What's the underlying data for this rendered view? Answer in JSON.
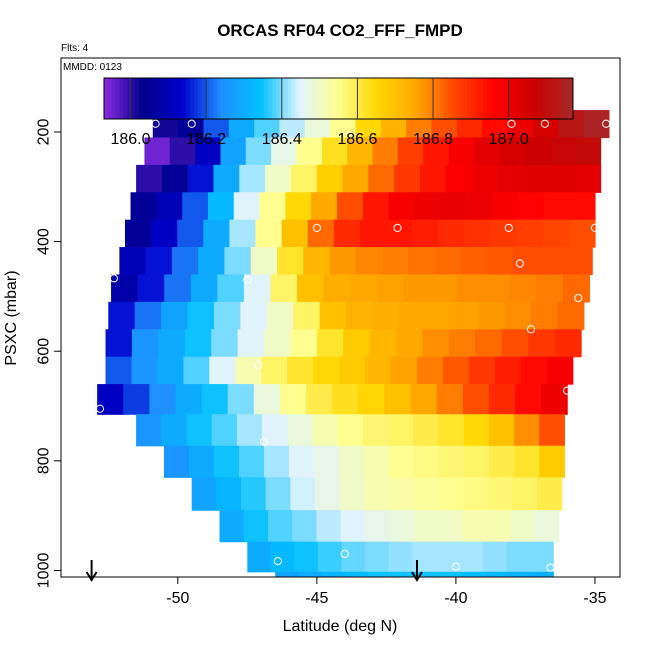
{
  "chart_data": {
    "type": "heatmap",
    "title": "ORCAS RF04 CO2_FFF_FMPD",
    "flights_label": "Flts: 4",
    "date_label": "MMDD: 0123",
    "xlabel": "Latitude (deg N)",
    "ylabel": "PSXC (mbar)",
    "xlim": [
      -54.2,
      -34.1
    ],
    "ylim": [
      1012,
      65
    ],
    "x_ticks": [
      -50,
      -45,
      -40,
      -35
    ],
    "x_tick_labels": [
      "-50",
      "-45",
      "-40",
      "-35"
    ],
    "y_ticks": [
      200,
      400,
      600,
      800,
      1000
    ],
    "y_tick_labels": [
      "200",
      "400",
      "600",
      "800",
      "1000"
    ],
    "colorbar": {
      "range": [
        185.93,
        187.17
      ],
      "ticks": [
        186.0,
        186.2,
        186.4,
        186.6,
        186.8,
        187.0
      ],
      "tick_labels": [
        "186.0",
        "186.2",
        "186.4",
        "186.6",
        "186.8",
        "187.0"
      ],
      "palette": [
        "#8a2be2",
        "#00008b",
        "#0000cd",
        "#1e90ff",
        "#00bfff",
        "#e0f4ff",
        "#ffff90",
        "#ffd700",
        "#ffa500",
        "#ff4500",
        "#ff0000",
        "#cd0000",
        "#a52a2a"
      ]
    },
    "rows": [
      {
        "p": 185,
        "x0": -50.9,
        "x1": -34.5,
        "v": [
          186.02,
          186.05,
          186.2,
          186.3,
          186.38,
          186.43,
          186.48,
          186.55,
          186.65,
          186.73,
          186.8,
          186.85,
          186.9,
          186.95,
          187.0,
          187.05,
          187.12,
          187.15
        ]
      },
      {
        "p": 235,
        "x0": -51.2,
        "x1": -34.8,
        "v": [
          185.95,
          186.0,
          186.12,
          186.28,
          186.4,
          186.47,
          186.55,
          186.63,
          186.72,
          186.8,
          186.87,
          186.93,
          186.98,
          187.02,
          187.05,
          187.07,
          187.08,
          187.09
        ]
      },
      {
        "p": 285,
        "x0": -51.5,
        "x1": -34.8,
        "v": [
          186.0,
          186.05,
          186.15,
          186.3,
          186.42,
          186.5,
          186.58,
          186.67,
          186.75,
          186.82,
          186.88,
          186.93,
          186.97,
          187.0,
          187.02,
          187.03,
          187.03,
          187.02
        ]
      },
      {
        "p": 335,
        "x0": -51.7,
        "x1": -35.0,
        "v": [
          186.05,
          186.1,
          186.2,
          186.33,
          186.45,
          186.55,
          186.65,
          186.75,
          186.85,
          186.93,
          186.98,
          187.0,
          187.01,
          187.0,
          186.98,
          186.96,
          186.95,
          186.95
        ]
      },
      {
        "p": 385,
        "x0": -51.9,
        "x1": -35.0,
        "v": [
          186.05,
          186.12,
          186.2,
          186.3,
          186.42,
          186.55,
          186.7,
          186.82,
          186.9,
          186.93,
          186.93,
          186.92,
          186.9,
          186.89,
          186.88,
          186.87,
          186.86,
          186.85
        ]
      },
      {
        "p": 435,
        "x0": -52.1,
        "x1": -35.1,
        "v": [
          186.1,
          186.15,
          186.22,
          186.3,
          186.4,
          186.5,
          186.62,
          186.72,
          186.77,
          186.79,
          186.8,
          186.81,
          186.82,
          186.83,
          186.84,
          186.85,
          186.85,
          186.85
        ]
      },
      {
        "p": 485,
        "x0": -52.4,
        "x1": -35.2,
        "v": [
          186.08,
          186.15,
          186.22,
          186.3,
          186.38,
          186.45,
          186.58,
          186.7,
          186.74,
          186.75,
          186.76,
          186.77,
          186.77,
          186.78,
          186.78,
          186.79,
          186.8,
          186.82
        ]
      },
      {
        "p": 535,
        "x0": -52.5,
        "x1": -35.4,
        "v": [
          186.15,
          186.22,
          186.28,
          186.35,
          186.4,
          186.45,
          186.5,
          186.58,
          186.7,
          186.73,
          186.74,
          186.75,
          186.75,
          186.76,
          186.77,
          186.78,
          186.8,
          186.82
        ]
      },
      {
        "p": 585,
        "x0": -52.6,
        "x1": -35.5,
        "v": [
          186.15,
          186.25,
          186.3,
          186.35,
          186.4,
          186.45,
          186.5,
          186.55,
          186.62,
          186.68,
          186.72,
          186.75,
          186.78,
          186.8,
          186.82,
          186.85,
          186.88,
          186.9
        ]
      },
      {
        "p": 635,
        "x0": -52.6,
        "x1": -35.8,
        "v": [
          186.2,
          186.25,
          186.3,
          186.38,
          186.45,
          186.52,
          186.58,
          186.62,
          186.65,
          186.68,
          186.72,
          186.76,
          186.8,
          186.84,
          186.88,
          186.92,
          186.95,
          186.98
        ]
      },
      {
        "p": 685,
        "x0": -52.9,
        "x1": -36.0,
        "v": [
          186.12,
          186.18,
          186.24,
          186.3,
          186.35,
          186.4,
          186.48,
          186.55,
          186.6,
          186.63,
          186.66,
          186.7,
          186.75,
          186.8,
          186.85,
          186.9,
          186.95,
          187.0
        ]
      },
      {
        "p": 745,
        "x0": -51.5,
        "x1": -36.1,
        "v": [
          186.25,
          186.3,
          186.35,
          186.38,
          186.42,
          186.45,
          186.48,
          186.52,
          186.55,
          186.57,
          186.58,
          186.6,
          186.62,
          186.65,
          186.7,
          186.78,
          186.85
        ]
      },
      {
        "p": 800,
        "x0": -50.5,
        "x1": -36.1,
        "v": [
          186.25,
          186.3,
          186.35,
          186.38,
          186.42,
          186.45,
          186.47,
          186.5,
          186.52,
          186.55,
          186.56,
          186.57,
          186.58,
          186.6,
          186.62,
          186.68
        ]
      },
      {
        "p": 860,
        "x0": -49.5,
        "x1": -36.2,
        "v": [
          186.28,
          186.32,
          186.36,
          186.4,
          186.44,
          186.47,
          186.5,
          186.52,
          186.53,
          186.54,
          186.55,
          186.56,
          186.57,
          186.58,
          186.6
        ]
      },
      {
        "p": 920,
        "x0": -48.5,
        "x1": -36.3,
        "v": [
          186.3,
          186.35,
          186.38,
          186.4,
          186.43,
          186.45,
          186.47,
          186.48,
          186.5,
          186.5,
          186.52,
          186.52,
          186.5,
          186.48
        ]
      },
      {
        "p": 975,
        "x0": -47.5,
        "x1": -36.5,
        "v": [
          186.3,
          186.33,
          186.35,
          186.37,
          186.39,
          186.4,
          186.41,
          186.42,
          186.42,
          186.42,
          186.41,
          186.4,
          186.4
        ]
      },
      {
        "p": 1030,
        "x0": -46.5,
        "x1": -36.5,
        "v": [
          186.28,
          186.3,
          186.32,
          186.34,
          186.35,
          186.35,
          186.35,
          186.35,
          186.34,
          186.33,
          186.32,
          186.31
        ]
      }
    ],
    "sample_points": [
      {
        "lat": -50.8,
        "p": 185
      },
      {
        "lat": -49.5,
        "p": 185
      },
      {
        "lat": -38.0,
        "p": 185
      },
      {
        "lat": -36.8,
        "p": 185
      },
      {
        "lat": -34.6,
        "p": 185
      },
      {
        "lat": -45.0,
        "p": 375
      },
      {
        "lat": -42.1,
        "p": 375
      },
      {
        "lat": -38.1,
        "p": 375
      },
      {
        "lat": -35.0,
        "p": 375
      },
      {
        "lat": -37.7,
        "p": 440
      },
      {
        "lat": -52.3,
        "p": 467
      },
      {
        "lat": -47.5,
        "p": 470
      },
      {
        "lat": -35.6,
        "p": 503
      },
      {
        "lat": -37.3,
        "p": 560
      },
      {
        "lat": -47.1,
        "p": 625
      },
      {
        "lat": -36.0,
        "p": 672
      },
      {
        "lat": -52.8,
        "p": 705
      },
      {
        "lat": -46.9,
        "p": 765
      },
      {
        "lat": -35.9,
        "p": 820
      },
      {
        "lat": -44.0,
        "p": 970
      },
      {
        "lat": -46.4,
        "p": 983
      },
      {
        "lat": -40.0,
        "p": 993
      },
      {
        "lat": -36.6,
        "p": 995
      }
    ],
    "arrows": [
      {
        "lat": -53.1,
        "p": 1012
      },
      {
        "lat": -41.4,
        "p": 1012
      }
    ]
  }
}
